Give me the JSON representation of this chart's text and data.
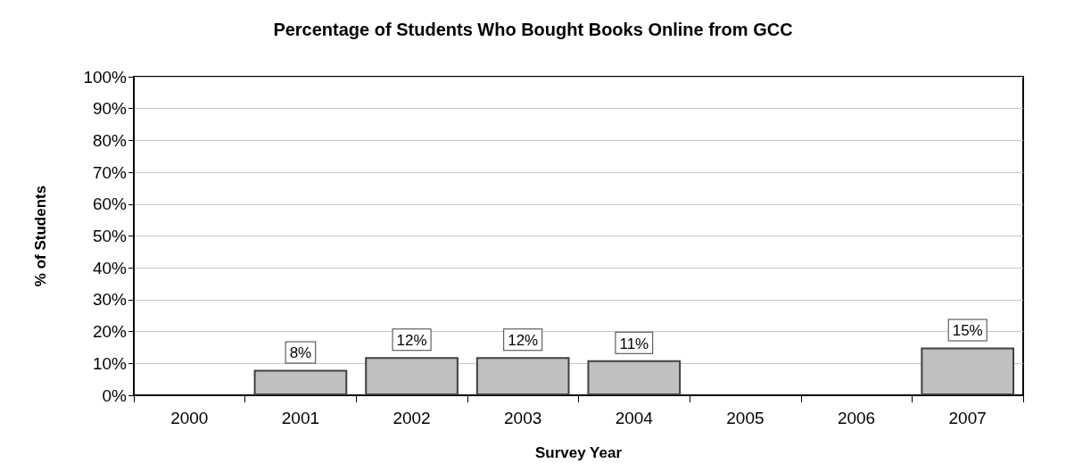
{
  "chart_data": {
    "type": "bar",
    "title": "Percentage of Students Who Bought Books Online from GCC",
    "xlabel": "Survey Year",
    "ylabel": "% of Students",
    "categories": [
      "2000",
      "2001",
      "2002",
      "2003",
      "2004",
      "2005",
      "2006",
      "2007"
    ],
    "values": [
      null,
      8,
      12,
      12,
      11,
      null,
      null,
      15
    ],
    "value_labels": [
      null,
      "8%",
      "12%",
      "12%",
      "11%",
      null,
      null,
      "15%"
    ],
    "color": "#c0c0c0",
    "ylim": [
      0,
      100
    ],
    "yticks": [
      {
        "value": 0,
        "label": "0%"
      },
      {
        "value": 10,
        "label": "10%"
      },
      {
        "value": 20,
        "label": "20%"
      },
      {
        "value": 30,
        "label": "30%"
      },
      {
        "value": 40,
        "label": "40%"
      },
      {
        "value": 50,
        "label": "50%"
      },
      {
        "value": 60,
        "label": "60%"
      },
      {
        "value": 70,
        "label": "70%"
      },
      {
        "value": 80,
        "label": "80%"
      },
      {
        "value": 90,
        "label": "90%"
      },
      {
        "value": 100,
        "label": "100%"
      }
    ],
    "grid": "y"
  }
}
